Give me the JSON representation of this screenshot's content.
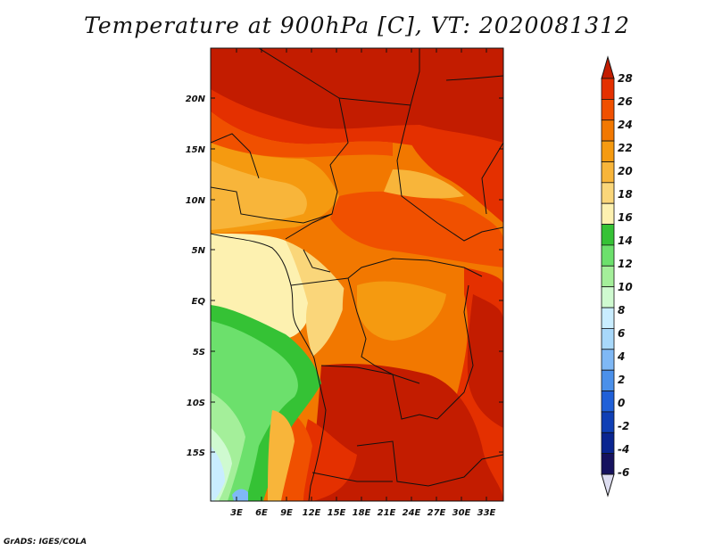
{
  "title": "Temperature at 900hPa [C], VT: 2020081312",
  "credit": "GrADS: IGES/COLA",
  "map": {
    "lat_labels": [
      "20N",
      "15N",
      "10N",
      "5N",
      "EQ",
      "5S",
      "10S",
      "15S"
    ],
    "lon_labels": [
      "3E",
      "6E",
      "9E",
      "12E",
      "15E",
      "18E",
      "21E",
      "24E",
      "27E",
      "30E",
      "33E"
    ]
  },
  "colorbar": {
    "levels": [
      "28",
      "26",
      "24",
      "22",
      "20",
      "18",
      "16",
      "14",
      "12",
      "10",
      "8",
      "6",
      "4",
      "2",
      "0",
      "-2",
      "-4",
      "-6"
    ],
    "colors": [
      "#c31c00",
      "#e43000",
      "#f05000",
      "#f27800",
      "#f59a10",
      "#f8b53a",
      "#fad67a",
      "#fdf1b0",
      "#35c235",
      "#6ce06c",
      "#a4ef9a",
      "#cffad0",
      "#c9edff",
      "#a8d8fa",
      "#7fb8f5",
      "#4b90ea",
      "#2060d8",
      "#0f3fb5",
      "#0a2590",
      "#16125e",
      "#ddddf0"
    ]
  }
}
